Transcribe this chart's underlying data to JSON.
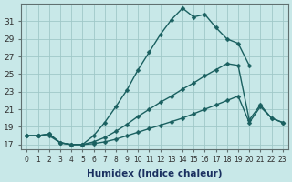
{
  "bg_color": "#c8e8e8",
  "grid_color": "#a0c8c8",
  "line_color": "#1a6060",
  "marker": "D",
  "markersize": 2.5,
  "linewidth": 1.0,
  "xlabel": "Humidex (Indice chaleur)",
  "xlabel_fontsize": 7.5,
  "ytick_fontsize": 6.5,
  "xtick_fontsize": 5.5,
  "ylim": [
    16.5,
    33.0
  ],
  "xlim": [
    -0.5,
    23.5
  ],
  "yticks": [
    17,
    19,
    21,
    23,
    25,
    27,
    29,
    31
  ],
  "xticks": [
    0,
    1,
    2,
    3,
    4,
    5,
    6,
    7,
    8,
    9,
    10,
    11,
    12,
    13,
    14,
    15,
    16,
    17,
    18,
    19,
    20,
    21,
    22,
    23
  ],
  "line1_x": [
    0,
    1,
    2,
    3,
    4,
    5,
    6,
    7,
    8,
    9,
    10,
    11,
    12,
    13,
    14,
    15,
    16,
    17,
    18,
    19,
    20
  ],
  "line1_y": [
    18.0,
    18.0,
    18.2,
    17.2,
    17.0,
    17.0,
    18.0,
    19.5,
    21.3,
    23.2,
    25.5,
    27.5,
    29.5,
    31.2,
    32.5,
    31.5,
    31.8,
    30.3,
    29.0,
    28.5,
    26.0
  ],
  "line2_x": [
    0,
    1,
    2,
    3,
    4,
    5,
    6,
    7,
    8,
    9,
    10,
    11,
    12,
    13,
    14,
    15,
    16,
    17,
    18,
    19,
    20,
    21,
    22,
    23
  ],
  "line2_y": [
    18.0,
    18.0,
    18.2,
    17.2,
    17.0,
    17.0,
    17.3,
    17.8,
    18.5,
    19.3,
    20.2,
    21.0,
    21.8,
    22.5,
    23.3,
    24.0,
    24.8,
    25.5,
    26.2,
    26.0,
    19.8,
    21.5,
    20.0,
    19.5
  ],
  "line3_x": [
    0,
    1,
    2,
    3,
    4,
    5,
    6,
    7,
    8,
    9,
    10,
    11,
    12,
    13,
    14,
    15,
    16,
    17,
    18,
    19,
    20,
    21,
    22,
    23
  ],
  "line3_y": [
    18.0,
    18.0,
    18.0,
    17.2,
    17.0,
    17.0,
    17.1,
    17.3,
    17.6,
    18.0,
    18.4,
    18.8,
    19.2,
    19.6,
    20.0,
    20.5,
    21.0,
    21.5,
    22.0,
    22.5,
    19.5,
    21.3,
    20.0,
    19.5
  ]
}
